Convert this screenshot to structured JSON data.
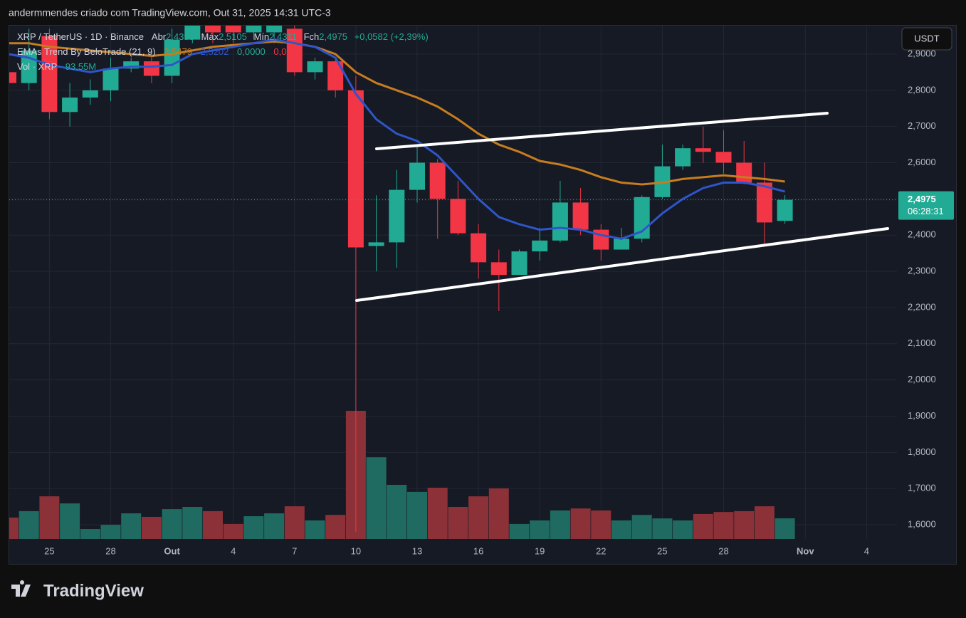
{
  "chart_data": {
    "type": "candlestick",
    "title": "andermmendes criado com TradingView.com, Out 31, 2025 14:31 UTC-3",
    "brand": "TradingView",
    "currency_button": "USDT",
    "legend": {
      "symbol": "XRP / TetherUS · 1D · Binance",
      "open_label": "Abr",
      "open": "2,4393",
      "high_label": "Máx",
      "high": "2,5105",
      "low_label": "Mín",
      "low": "2,4311",
      "close_label": "Fch",
      "close": "2,4975",
      "change": "+0,0582 (+2,39%)",
      "indicator": "EMAs Trend By BeloTrade (21, 9)",
      "indicator_values": [
        "2,5479",
        "2,5202",
        "0,0000",
        "0,0000"
      ],
      "volume_name": "Vol · XRP",
      "volume": "93,55M"
    },
    "last_price_label": "2,4975",
    "countdown": "06:28:31",
    "categories": [
      null,
      null,
      "25",
      null,
      null,
      "28",
      null,
      null,
      "Out",
      null,
      null,
      "4",
      null,
      null,
      "7",
      null,
      null,
      "10",
      null,
      null,
      "13",
      null,
      null,
      "16",
      null,
      null,
      "19",
      null,
      null,
      "22",
      null,
      null,
      "25",
      null,
      null,
      "28",
      null,
      null,
      null,
      "Nov",
      null,
      null,
      "4"
    ],
    "open": [
      2.85,
      2.82,
      2.95,
      2.74,
      2.78,
      2.8,
      2.86,
      2.88,
      2.84,
      2.94,
      2.98,
      2.99,
      2.96,
      2.96,
      2.97,
      2.85,
      2.88,
      2.8,
      2.37,
      2.38,
      2.525,
      2.6,
      2.5,
      2.405,
      2.325,
      2.29,
      2.355,
      2.385,
      2.49,
      2.415,
      2.36,
      2.39,
      2.505,
      2.59,
      2.64,
      2.63,
      2.6,
      2.545,
      2.4393,
      null,
      null,
      null,
      null
    ],
    "high": [
      2.87,
      2.97,
      2.97,
      2.82,
      2.83,
      2.89,
      2.89,
      2.9,
      2.97,
      3.03,
      3.02,
      3.0,
      3.02,
      3.03,
      3.0,
      2.89,
      2.89,
      2.84,
      2.51,
      2.58,
      2.65,
      2.61,
      2.55,
      2.43,
      2.36,
      2.36,
      2.42,
      2.55,
      2.53,
      2.43,
      2.42,
      2.51,
      2.65,
      2.65,
      2.7,
      2.69,
      2.66,
      2.6,
      2.5105,
      null,
      null,
      null,
      null
    ],
    "low": [
      2.8,
      2.8,
      2.72,
      2.7,
      2.76,
      2.77,
      2.85,
      2.82,
      2.82,
      2.93,
      2.93,
      2.93,
      2.94,
      2.93,
      2.84,
      2.83,
      2.78,
      1.58,
      2.3,
      2.31,
      2.49,
      2.39,
      2.4,
      2.28,
      2.19,
      2.29,
      2.33,
      2.38,
      2.4,
      2.33,
      2.36,
      2.38,
      2.5,
      2.58,
      2.6,
      2.57,
      2.54,
      2.375,
      2.4311,
      null,
      null,
      null,
      null
    ],
    "close": [
      2.82,
      2.91,
      2.74,
      2.78,
      2.8,
      2.86,
      2.88,
      2.84,
      2.94,
      2.98,
      2.96,
      2.96,
      2.98,
      2.99,
      2.85,
      2.88,
      2.8,
      2.366,
      2.38,
      2.525,
      2.6,
      2.5,
      2.405,
      2.325,
      2.29,
      2.355,
      2.385,
      2.49,
      2.415,
      2.36,
      2.39,
      2.505,
      2.59,
      2.64,
      2.63,
      2.6,
      2.545,
      2.435,
      2.4975,
      null,
      null,
      null,
      null
    ],
    "volume": [
      97000000,
      126000000,
      193000000,
      161000000,
      45000000,
      64000000,
      116000000,
      100000000,
      135000000,
      145000000,
      126000000,
      68000000,
      103000000,
      116000000,
      148000000,
      84000000,
      109000000,
      580000000,
      370000000,
      245000000,
      213000000,
      232000000,
      145000000,
      193000000,
      229000000,
      68000000,
      84000000,
      129000000,
      138000000,
      129000000,
      84000000,
      109000000,
      93000000,
      84000000,
      113000000,
      122000000,
      126000000,
      148000000,
      93550000,
      null,
      null,
      null,
      null
    ],
    "up_color": "#22ab94",
    "down_color": "#f23645",
    "volume_up_color": "#1f6b62",
    "volume_down_color": "#8c3138",
    "indicators": [
      {
        "color": "#c77c1e",
        "values": [
          2.93,
          2.93,
          2.92,
          2.915,
          2.91,
          2.905,
          2.9,
          2.895,
          2.9,
          2.91,
          2.92,
          2.925,
          2.93,
          2.935,
          2.93,
          2.92,
          2.9,
          2.85,
          2.82,
          2.8,
          2.78,
          2.755,
          2.72,
          2.68,
          2.65,
          2.63,
          2.605,
          2.595,
          2.58,
          2.56,
          2.545,
          2.54,
          2.545,
          2.555,
          2.56,
          2.565,
          2.56,
          2.555,
          2.5479,
          null,
          null,
          null,
          null
        ]
      },
      {
        "color": "#2e55c9",
        "values": [
          2.9,
          2.89,
          2.87,
          2.86,
          2.85,
          2.86,
          2.865,
          2.865,
          2.87,
          2.9,
          2.91,
          2.92,
          2.93,
          2.94,
          2.93,
          2.92,
          2.89,
          2.79,
          2.72,
          2.68,
          2.66,
          2.62,
          2.56,
          2.5,
          2.45,
          2.43,
          2.415,
          2.42,
          2.415,
          2.4,
          2.39,
          2.41,
          2.46,
          2.5,
          2.53,
          2.545,
          2.545,
          2.535,
          2.5202,
          null,
          null,
          null,
          null
        ]
      }
    ],
    "ylim": [
      1.5607,
      2.9786
    ],
    "yticks": [
      {
        "value": 2.9,
        "label": "2,9000"
      },
      {
        "value": 2.8,
        "label": "2,8000"
      },
      {
        "value": 2.7,
        "label": "2,7000"
      },
      {
        "value": 2.6,
        "label": "2,6000"
      },
      {
        "value": 2.5,
        "label": "2,5000"
      },
      {
        "value": 2.4,
        "label": "2,4000"
      },
      {
        "value": 2.3,
        "label": "2,3000"
      },
      {
        "value": 2.2,
        "label": "2,2000"
      },
      {
        "value": 2.1,
        "label": "2,1000"
      },
      {
        "value": 2.0,
        "label": "2,0000"
      },
      {
        "value": 1.9,
        "label": "1,9000"
      },
      {
        "value": 1.8,
        "label": "1,8000"
      },
      {
        "value": 1.7,
        "label": "1,7000"
      },
      {
        "value": 1.6,
        "label": "1,6000"
      }
    ],
    "grid": true
  }
}
